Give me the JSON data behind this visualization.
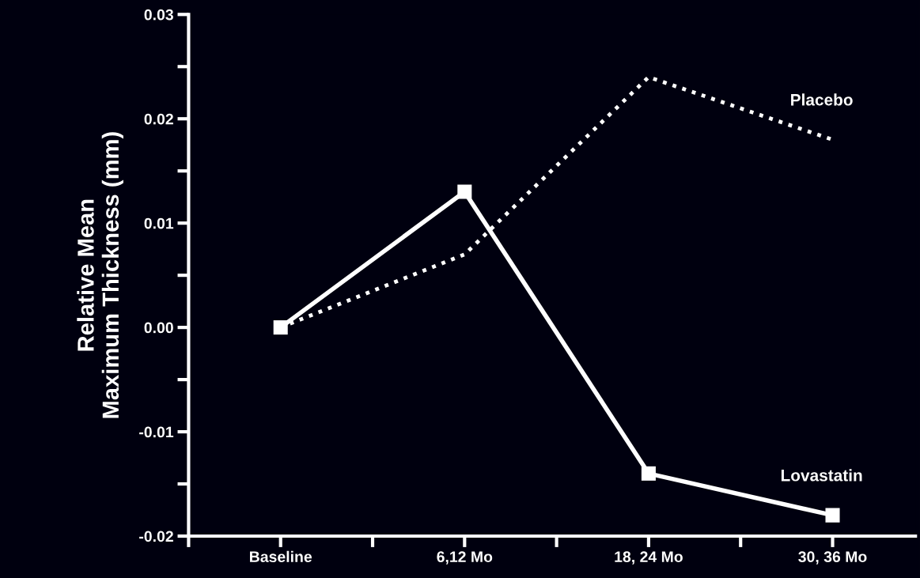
{
  "chart_data": {
    "type": "line",
    "ylabel": "Relative Mean\nMaximum Thickness (mm)",
    "categories": [
      "Baseline",
      "6,12 Mo",
      "18, 24 Mo",
      "30, 36 Mo"
    ],
    "series": [
      {
        "name": "Placebo",
        "color": "#ffffff",
        "values": [
          0.0,
          0.007,
          0.024,
          0.018
        ],
        "line_style": "dotted",
        "marker": "none"
      },
      {
        "name": "Lovastatin",
        "color": "#ffffff",
        "values": [
          0.0,
          0.013,
          -0.014,
          -0.018
        ],
        "line_style": "solid",
        "marker": "square"
      }
    ],
    "ylim": [
      -0.02,
      0.03
    ],
    "yticks": [
      {
        "value": -0.02,
        "label": "-0.02"
      },
      {
        "value": -0.015,
        "label": null
      },
      {
        "value": -0.01,
        "label": "-0.01"
      },
      {
        "value": -0.005,
        "label": null
      },
      {
        "value": 0.0,
        "label": "0.00"
      },
      {
        "value": 0.005,
        "label": null
      },
      {
        "value": 0.01,
        "label": "0.01"
      },
      {
        "value": 0.015,
        "label": null
      },
      {
        "value": 0.02,
        "label": "0.02"
      },
      {
        "value": 0.025,
        "label": null
      },
      {
        "value": 0.03,
        "label": "0.03"
      }
    ],
    "grid": false,
    "legend": false
  }
}
